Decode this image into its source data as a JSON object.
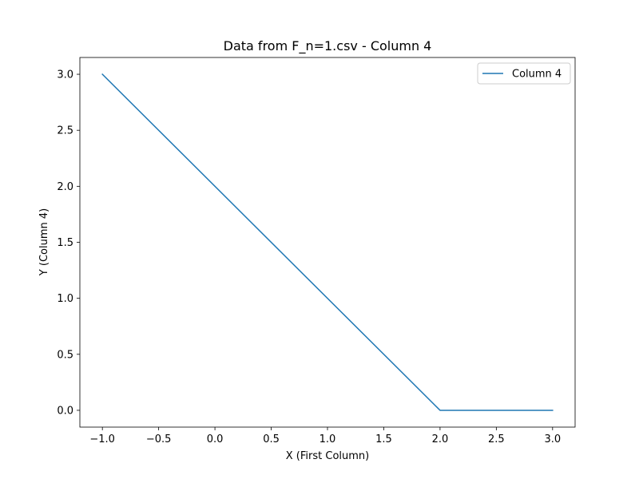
{
  "chart_data": {
    "type": "line",
    "title": "Data from F_n=1.csv - Column 4",
    "xlabel": "X (First Column)",
    "ylabel": "Y (Column 4)",
    "xlim": [
      -1.2,
      3.2
    ],
    "ylim": [
      -0.15,
      3.15
    ],
    "xticks": [
      -1.0,
      -0.5,
      0.0,
      0.5,
      1.0,
      1.5,
      2.0,
      2.5,
      3.0
    ],
    "xtick_labels": [
      "−1.0",
      "−0.5",
      "0.0",
      "0.5",
      "1.0",
      "1.5",
      "2.0",
      "2.5",
      "3.0"
    ],
    "yticks": [
      0.0,
      0.5,
      1.0,
      1.5,
      2.0,
      2.5,
      3.0
    ],
    "ytick_labels": [
      "0.0",
      "0.5",
      "1.0",
      "1.5",
      "2.0",
      "2.5",
      "3.0"
    ],
    "grid": false,
    "legend_position": "top-right",
    "series": [
      {
        "name": "Column 4",
        "color": "#1f77b4",
        "x": [
          -1.0,
          2.0,
          3.0
        ],
        "y": [
          3.0,
          0.0,
          0.0
        ]
      }
    ]
  }
}
